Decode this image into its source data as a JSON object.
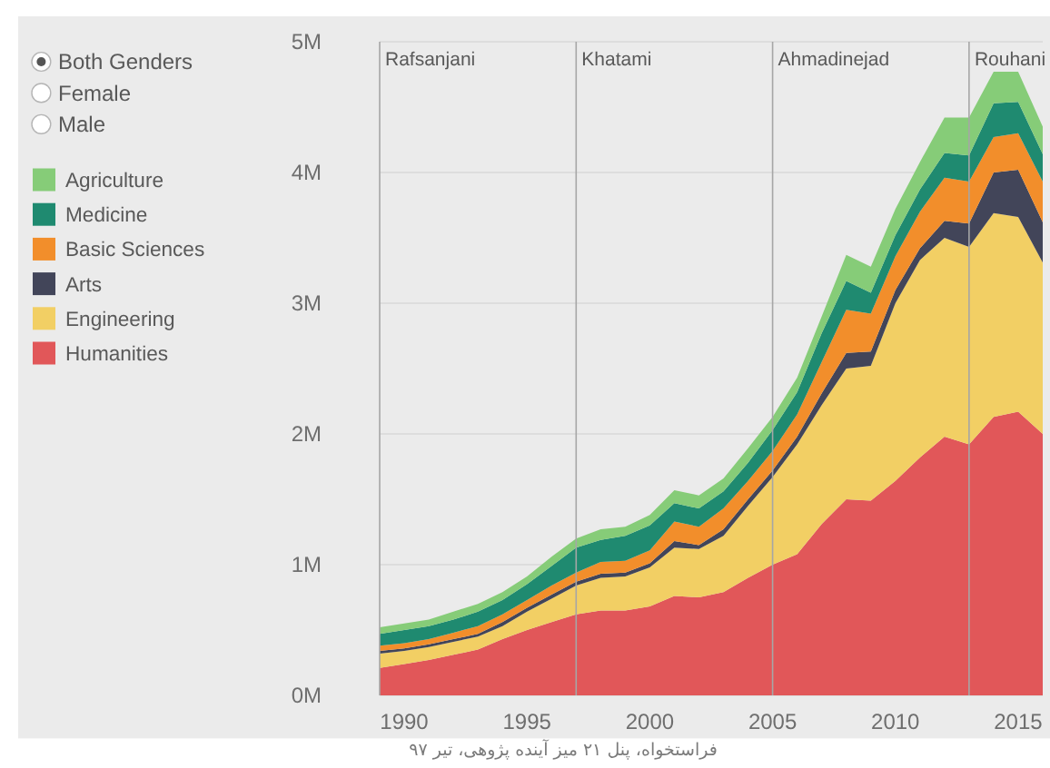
{
  "chart_data": {
    "type": "area",
    "stacked": true,
    "x": [
      1989,
      1990,
      1991,
      1992,
      1993,
      1994,
      1995,
      1996,
      1997,
      1998,
      1999,
      2000,
      2001,
      2002,
      2003,
      2004,
      2005,
      2006,
      2007,
      2008,
      2009,
      2010,
      2011,
      2012,
      2013,
      2014,
      2015,
      2016
    ],
    "series": [
      {
        "name": "Humanities",
        "color": "#e15759",
        "values": [
          210000,
          240000,
          270000,
          310000,
          350000,
          430000,
          500000,
          560000,
          620000,
          650000,
          650000,
          680000,
          760000,
          750000,
          790000,
          900000,
          1000000,
          1080000,
          1310000,
          1500000,
          1490000,
          1640000,
          1820000,
          1980000,
          1920000,
          2130000,
          2170000,
          2000000
        ]
      },
      {
        "name": "Engineering",
        "color": "#f2cf64",
        "values": [
          110000,
          100000,
          100000,
          100000,
          100000,
          100000,
          140000,
          180000,
          220000,
          250000,
          260000,
          300000,
          370000,
          370000,
          430000,
          550000,
          670000,
          840000,
          910000,
          1000000,
          1030000,
          1360000,
          1510000,
          1520000,
          1510000,
          1560000,
          1490000,
          1310000
        ]
      },
      {
        "name": "Arts",
        "color": "#424559",
        "values": [
          20000,
          20000,
          20000,
          20000,
          20000,
          30000,
          30000,
          30000,
          30000,
          30000,
          30000,
          30000,
          50000,
          30000,
          50000,
          50000,
          50000,
          60000,
          90000,
          120000,
          110000,
          100000,
          90000,
          130000,
          180000,
          310000,
          360000,
          310000
        ]
      },
      {
        "name": "Basic Sciences",
        "color": "#f28e2b",
        "values": [
          40000,
          40000,
          40000,
          50000,
          60000,
          60000,
          60000,
          70000,
          70000,
          90000,
          90000,
          100000,
          150000,
          140000,
          160000,
          140000,
          150000,
          170000,
          240000,
          330000,
          290000,
          260000,
          280000,
          330000,
          320000,
          270000,
          280000,
          310000
        ]
      },
      {
        "name": "Medicine",
        "color": "#1f8a70",
        "values": [
          90000,
          100000,
          100000,
          100000,
          110000,
          110000,
          120000,
          150000,
          190000,
          170000,
          190000,
          190000,
          140000,
          140000,
          130000,
          140000,
          160000,
          170000,
          220000,
          220000,
          160000,
          160000,
          170000,
          190000,
          200000,
          260000,
          240000,
          210000
        ]
      },
      {
        "name": "Agriculture",
        "color": "#86cc78",
        "values": [
          50000,
          50000,
          50000,
          60000,
          60000,
          60000,
          60000,
          70000,
          70000,
          80000,
          70000,
          80000,
          100000,
          100000,
          100000,
          110000,
          100000,
          110000,
          130000,
          200000,
          200000,
          200000,
          210000,
          270000,
          290000,
          240000,
          230000,
          210000
        ]
      }
    ],
    "xlim": [
      1989,
      2016
    ],
    "xticks": [
      1990,
      1995,
      2000,
      2005,
      2010,
      2015
    ],
    "ylim": [
      0,
      5000000
    ],
    "yticks": [
      {
        "value": 0,
        "label": "0M"
      },
      {
        "value": 1000000,
        "label": "1M"
      },
      {
        "value": 2000000,
        "label": "2M"
      },
      {
        "value": 3000000,
        "label": "3M"
      },
      {
        "value": 4000000,
        "label": "4M"
      },
      {
        "value": 5000000,
        "label": "5M"
      }
    ],
    "grid": "y",
    "legend": "left",
    "ref_lines": [
      {
        "axis": "x",
        "value": 1989,
        "label": "Rafsanjani",
        "color": "#a6a6a6"
      },
      {
        "axis": "x",
        "value": 1997,
        "label": "Khatami",
        "color": "#a6a6a6"
      },
      {
        "axis": "x",
        "value": 2005,
        "label": "Ahmadinejad",
        "color": "#a6a6a6"
      },
      {
        "axis": "x",
        "value": 2013,
        "label": "Rouhani",
        "color": "#a6a6a6"
      }
    ],
    "annotations": [
      "Both Genders",
      "Female",
      "Male",
      "فراستخواه، پنل ۲۱ میز آینده پژوهی، تیر ۹۷"
    ]
  }
}
